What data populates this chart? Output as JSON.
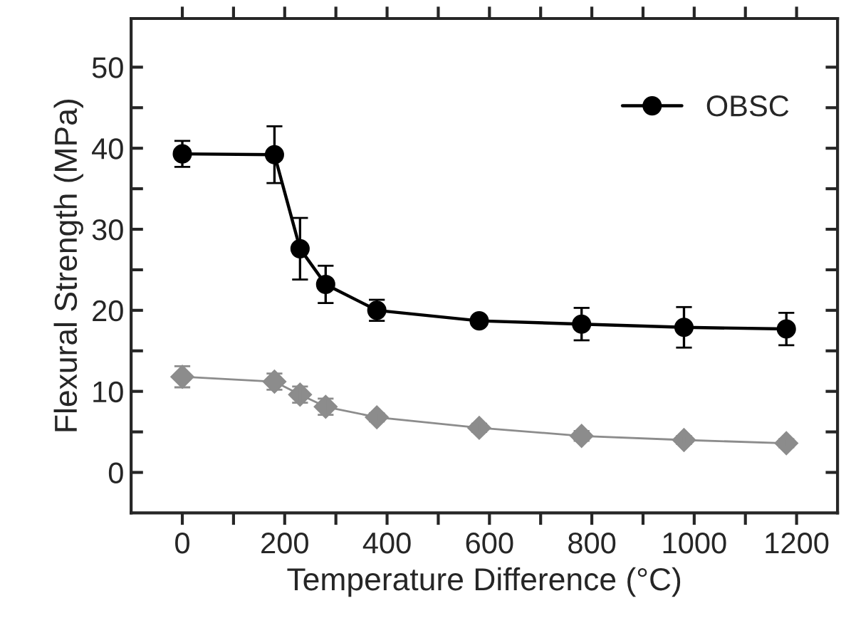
{
  "chart_data": {
    "type": "line",
    "xlabel": "Temperature Difference (°C)",
    "ylabel": "Flexural Strength (MPa)",
    "xlim": [
      -100,
      1280
    ],
    "ylim": [
      -5,
      56
    ],
    "xticks": [
      0,
      {
        "value": 100,
        "label": null
      },
      200,
      {
        "value": 300,
        "label": null
      },
      400,
      {
        "value": 500,
        "label": null
      },
      600,
      {
        "value": 700,
        "label": null
      },
      800,
      {
        "value": 900,
        "label": null
      },
      1000,
      {
        "value": 1100,
        "label": null
      },
      1200
    ],
    "yticks": [
      0,
      {
        "value": 5,
        "label": null
      },
      10,
      {
        "value": 15,
        "label": null
      },
      20,
      {
        "value": 25,
        "label": null
      },
      30,
      {
        "value": 35,
        "label": null
      },
      40,
      {
        "value": 45,
        "label": null
      },
      50
    ],
    "grid": false,
    "legend": "top right",
    "series": [
      {
        "name": "OBSC",
        "color": "#000000",
        "marker": "circle",
        "x": [
          0,
          180,
          230,
          280,
          380,
          580,
          780,
          980,
          1180
        ],
        "values": [
          39.3,
          39.2,
          27.6,
          23.2,
          20.0,
          18.7,
          18.3,
          17.9,
          17.7
        ],
        "errors": [
          1.6,
          3.5,
          3.8,
          2.3,
          1.3,
          null,
          2.0,
          2.5,
          2.0
        ]
      },
      {
        "color": "#8c8c8c",
        "marker": "diamond",
        "x": [
          0,
          180,
          230,
          280,
          380,
          580,
          780,
          980,
          1180
        ],
        "values": [
          11.8,
          11.2,
          9.6,
          8.1,
          6.8,
          5.5,
          4.5,
          4.0,
          3.6
        ],
        "errors": [
          1.3,
          1.0,
          1.0,
          1.0,
          0.5,
          0.5,
          0.6,
          0.5,
          0.5
        ]
      }
    ]
  }
}
